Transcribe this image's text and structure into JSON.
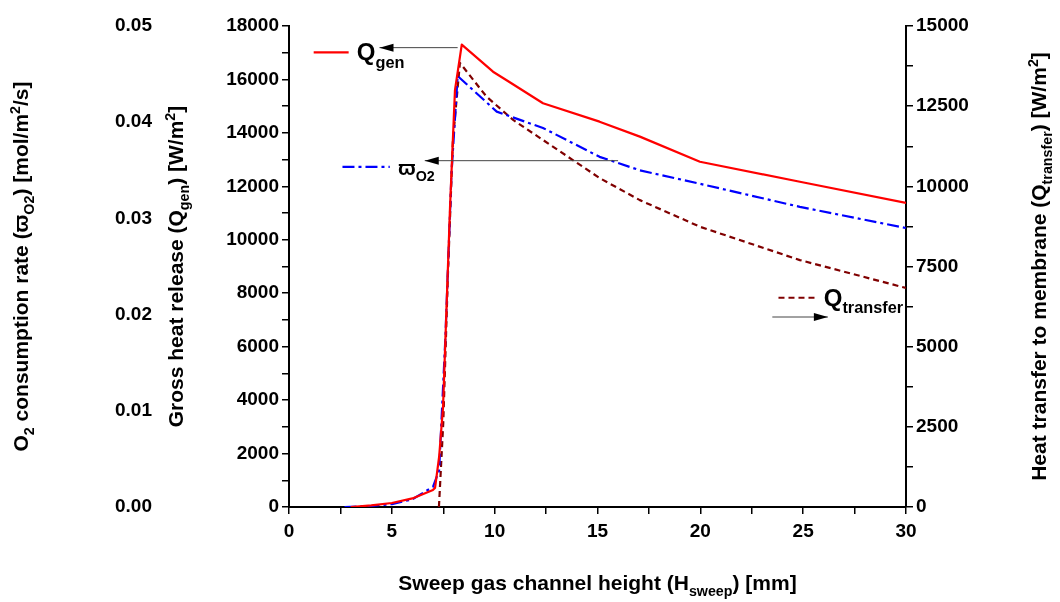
{
  "chart_data": {
    "type": "line",
    "xlabel": "Sweep gas channel height (H$_{sweep}$) [mm]",
    "ylabel": "Gross heat release (Q$_{gen}$) [W/m$^{2}$]",
    "y2label": "Heat transfer to membrane (Q$_{transfer}$) [W/m$^{2}$]",
    "y3label": "O$_{2}$ consumption rate (ϖ$_{O2}$) [mol/m$^{2}$/s]",
    "xlim": [
      0,
      30
    ],
    "xticks": [
      0,
      {
        "value": 2.5,
        "label": null
      },
      5,
      {
        "value": 7.5,
        "label": null
      },
      10,
      {
        "value": 12.5,
        "label": null
      },
      15,
      {
        "value": 17.5,
        "label": null
      },
      20,
      {
        "value": 22.5,
        "label": null
      },
      25,
      {
        "value": 27.5,
        "label": null
      },
      30
    ],
    "ylim": [
      0,
      18000
    ],
    "yticks": [
      0,
      {
        "value": 1000,
        "label": null
      },
      2000,
      {
        "value": 3000,
        "label": null
      },
      4000,
      {
        "value": 5000,
        "label": null
      },
      6000,
      {
        "value": 7000,
        "label": null
      },
      8000,
      {
        "value": 9000,
        "label": null
      },
      10000,
      {
        "value": 11000,
        "label": null
      },
      12000,
      {
        "value": 13000,
        "label": null
      },
      14000,
      {
        "value": 15000,
        "label": null
      },
      16000,
      {
        "value": 17000,
        "label": null
      },
      18000
    ],
    "y2lim": [
      0,
      15000
    ],
    "y2ticks": [
      0,
      {
        "value": 1250,
        "label": null
      },
      2500,
      {
        "value": 3750,
        "label": null
      },
      5000,
      {
        "value": 6250,
        "label": null
      },
      7500,
      {
        "value": 8750,
        "label": null
      },
      10000,
      {
        "value": 11250,
        "label": null
      },
      12500,
      {
        "value": 13750,
        "label": null
      },
      15000
    ],
    "y3lim": [
      0,
      0.05
    ],
    "y3ticks": [
      {
        "value": 0,
        "label": "0.00"
      },
      {
        "value": 0.01,
        "label": "0.01"
      },
      {
        "value": 0.02,
        "label": "0.02"
      },
      {
        "value": 0.03,
        "label": "0.03"
      },
      {
        "value": 0.04,
        "label": "0.04"
      },
      {
        "value": 0.05,
        "label": "0.05"
      }
    ],
    "grid": false,
    "legend": "top left",
    "series": [
      {
        "name": "Q$_{gen}$",
        "color": "#ff0000",
        "line_style": "solid",
        "axis": "y",
        "x": [
          3,
          4,
          5,
          6,
          7,
          7.1,
          7.3,
          7.49,
          7.83,
          8.07,
          8.4,
          9.92,
          12.35,
          15.1,
          17.06,
          19.98,
          24.84,
          30
        ],
        "values": [
          0,
          60,
          150,
          320,
          640,
          710,
          1880,
          3740,
          11230,
          15600,
          17300,
          16290,
          15110,
          14420,
          13860,
          12920,
          12170,
          11380
        ]
      },
      {
        "name": "ϖ$_{O2}$",
        "color": "#0000ff",
        "line_style": "dashdot",
        "axis": "y3",
        "x": [
          2.7,
          4,
          5,
          6,
          7,
          7.3,
          7.6,
          7.9,
          8.2,
          10.1,
          12.35,
          15.1,
          17.06,
          19.98,
          24.84,
          30
        ],
        "values": [
          0,
          0.0001,
          0.0003,
          0.0008,
          0.0021,
          0.0038,
          0.0174,
          0.0347,
          0.0448,
          0.0411,
          0.0394,
          0.0364,
          0.035,
          0.0336,
          0.0312,
          0.029
        ]
      },
      {
        "name": "Q$_{transfer}$",
        "color": "#800000",
        "line_style": "dashed",
        "axis": "y2",
        "x": [
          7.29,
          7.5,
          7.73,
          7.97,
          8.31,
          9.6,
          10.9,
          13.8,
          15.1,
          17.06,
          19.98,
          24.84,
          30
        ],
        "values": [
          0,
          2620,
          7300,
          11440,
          13850,
          12800,
          12070,
          10820,
          10260,
          9570,
          8740,
          7700,
          6830
        ]
      }
    ]
  }
}
